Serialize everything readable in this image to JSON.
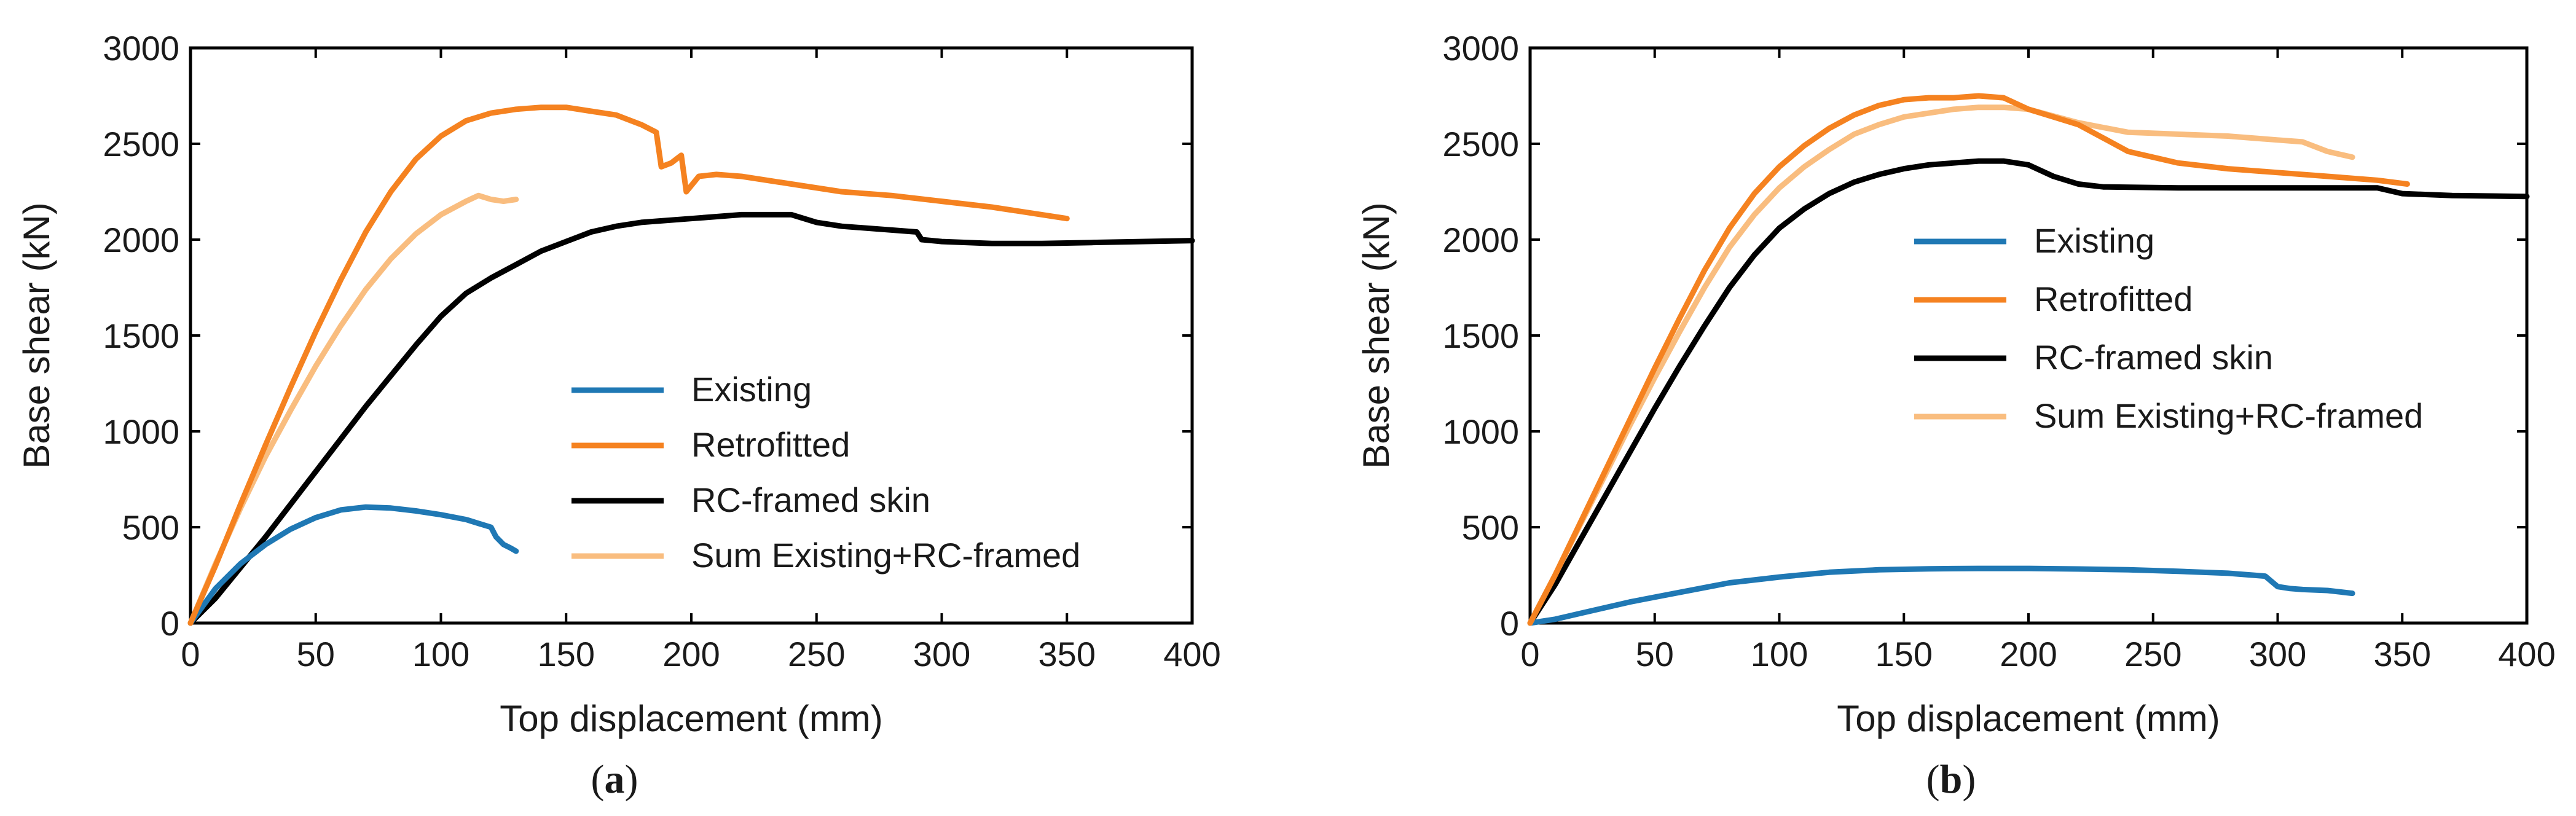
{
  "chart_data": [
    {
      "panel_label": "a",
      "type": "line",
      "title": "",
      "xlabel": "Top displacement (mm)",
      "ylabel": "Base shear (kN)",
      "xlim": [
        0,
        400
      ],
      "ylim": [
        0,
        3000
      ],
      "xticks": [
        0,
        50,
        100,
        150,
        200,
        250,
        300,
        350,
        400
      ],
      "yticks": [
        0,
        500,
        1000,
        1500,
        2000,
        2500,
        3000
      ],
      "grid": false,
      "legend_position": "lower-right",
      "series": [
        {
          "name": "Existing",
          "color": "#1f78b4",
          "points": [
            [
              0,
              0
            ],
            [
              10,
              180
            ],
            [
              20,
              310
            ],
            [
              30,
              410
            ],
            [
              40,
              490
            ],
            [
              50,
              550
            ],
            [
              60,
              590
            ],
            [
              70,
              605
            ],
            [
              80,
              600
            ],
            [
              90,
              585
            ],
            [
              100,
              565
            ],
            [
              110,
              540
            ],
            [
              115,
              520
            ],
            [
              120,
              500
            ],
            [
              122,
              450
            ],
            [
              125,
              410
            ],
            [
              128,
              390
            ],
            [
              130,
              375
            ]
          ]
        },
        {
          "name": "Retrofitted",
          "color": "#f58220",
          "points": [
            [
              0,
              0
            ],
            [
              10,
              300
            ],
            [
              20,
              620
            ],
            [
              30,
              930
            ],
            [
              40,
              1230
            ],
            [
              50,
              1520
            ],
            [
              60,
              1790
            ],
            [
              70,
              2040
            ],
            [
              80,
              2250
            ],
            [
              90,
              2420
            ],
            [
              100,
              2540
            ],
            [
              110,
              2620
            ],
            [
              120,
              2660
            ],
            [
              130,
              2680
            ],
            [
              140,
              2690
            ],
            [
              150,
              2690
            ],
            [
              160,
              2670
            ],
            [
              170,
              2650
            ],
            [
              180,
              2600
            ],
            [
              186,
              2560
            ],
            [
              188,
              2380
            ],
            [
              192,
              2400
            ],
            [
              196,
              2440
            ],
            [
              198,
              2250
            ],
            [
              203,
              2330
            ],
            [
              210,
              2340
            ],
            [
              220,
              2330
            ],
            [
              240,
              2290
            ],
            [
              260,
              2250
            ],
            [
              280,
              2230
            ],
            [
              300,
              2200
            ],
            [
              320,
              2170
            ],
            [
              340,
              2130
            ],
            [
              350,
              2110
            ]
          ]
        },
        {
          "name": "RC-framed skin",
          "color": "#000000",
          "points": [
            [
              0,
              0
            ],
            [
              10,
              130
            ],
            [
              20,
              290
            ],
            [
              30,
              450
            ],
            [
              40,
              620
            ],
            [
              50,
              790
            ],
            [
              60,
              960
            ],
            [
              70,
              1130
            ],
            [
              80,
              1290
            ],
            [
              90,
              1450
            ],
            [
              100,
              1600
            ],
            [
              110,
              1720
            ],
            [
              120,
              1800
            ],
            [
              130,
              1870
            ],
            [
              140,
              1940
            ],
            [
              150,
              1990
            ],
            [
              160,
              2040
            ],
            [
              170,
              2070
            ],
            [
              180,
              2090
            ],
            [
              200,
              2110
            ],
            [
              220,
              2130
            ],
            [
              240,
              2130
            ],
            [
              250,
              2090
            ],
            [
              260,
              2070
            ],
            [
              280,
              2050
            ],
            [
              290,
              2040
            ],
            [
              292,
              2000
            ],
            [
              300,
              1990
            ],
            [
              320,
              1980
            ],
            [
              340,
              1980
            ],
            [
              360,
              1985
            ],
            [
              380,
              1990
            ],
            [
              400,
              1995
            ]
          ]
        },
        {
          "name": "Sum Existing+RC-framed",
          "color": "#f9bd7f",
          "points": [
            [
              0,
              0
            ],
            [
              10,
              310
            ],
            [
              20,
              600
            ],
            [
              30,
              870
            ],
            [
              40,
              1110
            ],
            [
              50,
              1340
            ],
            [
              60,
              1550
            ],
            [
              70,
              1740
            ],
            [
              80,
              1900
            ],
            [
              90,
              2030
            ],
            [
              100,
              2130
            ],
            [
              110,
              2200
            ],
            [
              115,
              2230
            ],
            [
              120,
              2210
            ],
            [
              125,
              2200
            ],
            [
              130,
              2210
            ]
          ]
        }
      ],
      "caption": "a"
    },
    {
      "panel_label": "b",
      "type": "line",
      "title": "",
      "xlabel": "Top displacement (mm)",
      "ylabel": "Base shear (kN)",
      "xlim": [
        0,
        400
      ],
      "ylim": [
        0,
        3000
      ],
      "xticks": [
        0,
        50,
        100,
        150,
        200,
        250,
        300,
        350,
        400
      ],
      "yticks": [
        0,
        500,
        1000,
        1500,
        2000,
        2500,
        3000
      ],
      "grid": false,
      "legend_position": "center-right",
      "series": [
        {
          "name": "Existing",
          "color": "#1f78b4",
          "points": [
            [
              0,
              0
            ],
            [
              10,
              20
            ],
            [
              20,
              50
            ],
            [
              40,
              110
            ],
            [
              60,
              160
            ],
            [
              80,
              210
            ],
            [
              100,
              240
            ],
            [
              120,
              265
            ],
            [
              140,
              278
            ],
            [
              160,
              283
            ],
            [
              180,
              285
            ],
            [
              200,
              285
            ],
            [
              220,
              282
            ],
            [
              240,
              278
            ],
            [
              260,
              270
            ],
            [
              280,
              260
            ],
            [
              295,
              245
            ],
            [
              300,
              190
            ],
            [
              305,
              180
            ],
            [
              310,
              175
            ],
            [
              320,
              170
            ],
            [
              330,
              155
            ]
          ]
        },
        {
          "name": "Retrofitted",
          "color": "#f58220",
          "points": [
            [
              0,
              0
            ],
            [
              10,
              250
            ],
            [
              20,
              520
            ],
            [
              30,
              790
            ],
            [
              40,
              1060
            ],
            [
              50,
              1330
            ],
            [
              60,
              1590
            ],
            [
              70,
              1840
            ],
            [
              80,
              2060
            ],
            [
              90,
              2240
            ],
            [
              100,
              2380
            ],
            [
              110,
              2490
            ],
            [
              120,
              2580
            ],
            [
              130,
              2650
            ],
            [
              140,
              2700
            ],
            [
              150,
              2730
            ],
            [
              160,
              2740
            ],
            [
              170,
              2740
            ],
            [
              180,
              2750
            ],
            [
              190,
              2740
            ],
            [
              200,
              2680
            ],
            [
              210,
              2640
            ],
            [
              220,
              2600
            ],
            [
              230,
              2530
            ],
            [
              240,
              2460
            ],
            [
              260,
              2400
            ],
            [
              280,
              2370
            ],
            [
              300,
              2350
            ],
            [
              320,
              2330
            ],
            [
              340,
              2310
            ],
            [
              352,
              2290
            ]
          ]
        },
        {
          "name": "RC-framed skin",
          "color": "#000000",
          "points": [
            [
              0,
              0
            ],
            [
              10,
              200
            ],
            [
              20,
              430
            ],
            [
              30,
              660
            ],
            [
              40,
              890
            ],
            [
              50,
              1120
            ],
            [
              60,
              1340
            ],
            [
              70,
              1550
            ],
            [
              80,
              1750
            ],
            [
              90,
              1920
            ],
            [
              100,
              2060
            ],
            [
              110,
              2160
            ],
            [
              120,
              2240
            ],
            [
              130,
              2300
            ],
            [
              140,
              2340
            ],
            [
              150,
              2370
            ],
            [
              160,
              2390
            ],
            [
              170,
              2400
            ],
            [
              180,
              2410
            ],
            [
              190,
              2410
            ],
            [
              200,
              2390
            ],
            [
              210,
              2330
            ],
            [
              220,
              2290
            ],
            [
              230,
              2275
            ],
            [
              260,
              2270
            ],
            [
              300,
              2270
            ],
            [
              340,
              2270
            ],
            [
              350,
              2240
            ],
            [
              370,
              2230
            ],
            [
              400,
              2225
            ]
          ]
        },
        {
          "name": "Sum Existing+RC-framed",
          "color": "#f9bd7f",
          "points": [
            [
              0,
              0
            ],
            [
              10,
              250
            ],
            [
              20,
              510
            ],
            [
              30,
              770
            ],
            [
              40,
              1030
            ],
            [
              50,
              1280
            ],
            [
              60,
              1520
            ],
            [
              70,
              1750
            ],
            [
              80,
              1960
            ],
            [
              90,
              2130
            ],
            [
              100,
              2270
            ],
            [
              110,
              2380
            ],
            [
              120,
              2470
            ],
            [
              130,
              2550
            ],
            [
              140,
              2600
            ],
            [
              150,
              2640
            ],
            [
              160,
              2660
            ],
            [
              170,
              2680
            ],
            [
              180,
              2690
            ],
            [
              190,
              2690
            ],
            [
              200,
              2680
            ],
            [
              220,
              2610
            ],
            [
              240,
              2560
            ],
            [
              260,
              2550
            ],
            [
              280,
              2540
            ],
            [
              300,
              2520
            ],
            [
              310,
              2510
            ],
            [
              320,
              2460
            ],
            [
              330,
              2430
            ]
          ]
        }
      ],
      "caption": "b"
    }
  ]
}
